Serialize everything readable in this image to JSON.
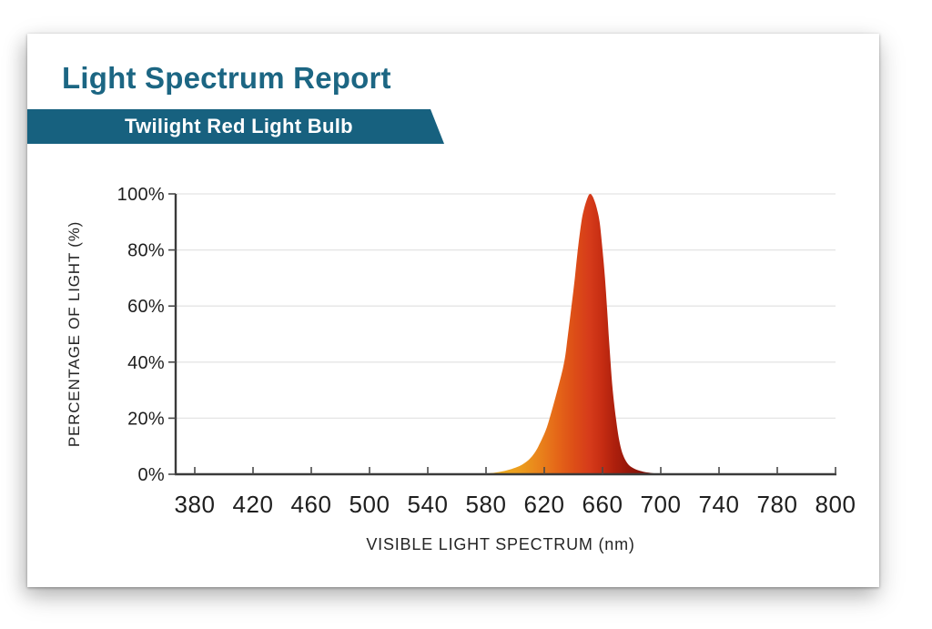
{
  "header": {
    "title": "Light Spectrum Report",
    "banner": "Twilight Red Light Bulb"
  },
  "colors": {
    "title_teal": "#1c6683",
    "banner_teal": "#17617f",
    "axis": "#3a3a3a",
    "tick": "#4a4a4a",
    "grid": "#e4e4e4",
    "label": "#1e1e1e"
  },
  "chart_data": {
    "type": "area",
    "title": "Light Spectrum Report",
    "subtitle": "Twilight Red Light Bulb",
    "xlabel": "VISIBLE LIGHT SPECTRUM (nm)",
    "ylabel": "PERCENTAGE OF LIGHT (%)",
    "x_tick_labels": [
      "380",
      "420",
      "460",
      "500",
      "540",
      "580",
      "620",
      "660",
      "700",
      "740",
      "780",
      "800"
    ],
    "x_tick_values_nm": [
      380,
      420,
      460,
      500,
      540,
      580,
      620,
      660,
      700,
      740,
      780,
      800
    ],
    "y_tick_labels": [
      "0%",
      "20%",
      "40%",
      "60%",
      "80%",
      "100%"
    ],
    "y_tick_values": [
      0,
      20,
      40,
      60,
      80,
      100
    ],
    "ylim": [
      0,
      100
    ],
    "grid": "horizontal-only",
    "legend": "none",
    "series": [
      {
        "name": "Twilight Red Light Bulb",
        "peak_nm": 651.5,
        "peak_pct": 100,
        "points_nm_pct": [
          [
            574,
            0
          ],
          [
            578,
            0.15
          ],
          [
            581,
            0.3
          ],
          [
            585,
            0.5
          ],
          [
            589,
            0.8
          ],
          [
            593,
            1.2
          ],
          [
            597,
            1.8
          ],
          [
            601,
            2.5
          ],
          [
            605,
            3.5
          ],
          [
            609,
            5
          ],
          [
            612.5,
            7
          ],
          [
            616,
            10
          ],
          [
            620.5,
            15
          ],
          [
            623.7,
            20
          ],
          [
            629,
            30
          ],
          [
            633.7,
            40
          ],
          [
            636.3,
            50
          ],
          [
            638.7,
            60
          ],
          [
            641,
            70
          ],
          [
            643,
            80
          ],
          [
            645.5,
            90
          ],
          [
            647.5,
            95
          ],
          [
            650,
            99
          ],
          [
            651.5,
            100
          ],
          [
            653,
            99.3
          ],
          [
            654.5,
            97.5
          ],
          [
            656,
            95
          ],
          [
            658,
            90
          ],
          [
            660,
            80
          ],
          [
            661.7,
            70
          ],
          [
            663,
            60
          ],
          [
            664.2,
            50
          ],
          [
            665.5,
            40
          ],
          [
            667,
            30
          ],
          [
            669.2,
            20
          ],
          [
            671.5,
            12
          ],
          [
            674,
            7
          ],
          [
            677,
            4
          ],
          [
            680,
            2.5
          ],
          [
            684,
            1.5
          ],
          [
            688,
            0.9
          ],
          [
            692,
            0.55
          ],
          [
            696,
            0.3
          ],
          [
            700,
            0.15
          ],
          [
            704,
            0.05
          ],
          [
            708,
            0
          ]
        ]
      }
    ],
    "fill_gradient_stops_nm": [
      {
        "nm": 574,
        "color": "#f0b424"
      },
      {
        "nm": 590,
        "color": "#edaa1f"
      },
      {
        "nm": 605,
        "color": "#eb9a1d"
      },
      {
        "nm": 618,
        "color": "#e9801b"
      },
      {
        "nm": 630,
        "color": "#e46418"
      },
      {
        "nm": 640,
        "color": "#dd4f17"
      },
      {
        "nm": 651,
        "color": "#d63b1a"
      },
      {
        "nm": 660,
        "color": "#c52c12"
      },
      {
        "nm": 668,
        "color": "#ae200d"
      },
      {
        "nm": 678,
        "color": "#96170a"
      },
      {
        "nm": 690,
        "color": "#7f1106"
      },
      {
        "nm": 708,
        "color": "#6b0d03"
      }
    ]
  }
}
